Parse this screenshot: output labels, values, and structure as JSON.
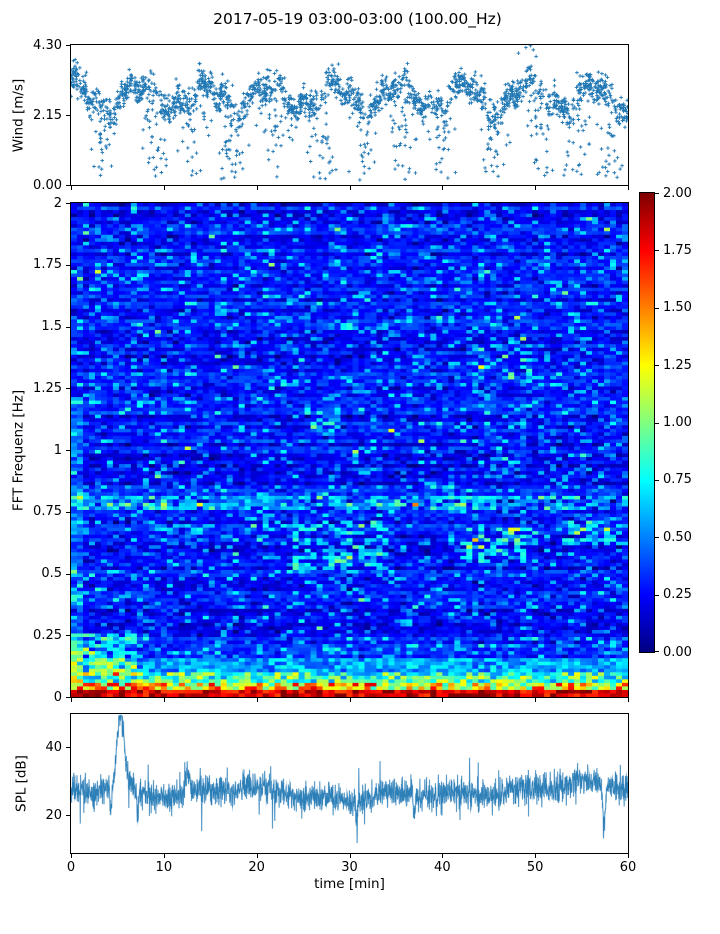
{
  "figure": {
    "title": "2017-05-19 03:00-03:00 (100.00_Hz)",
    "background": "#ffffff",
    "accent_color": "#1f77b4",
    "xtick_values": [
      0,
      10,
      20,
      30,
      40,
      50,
      60
    ]
  },
  "chart_data": [
    {
      "type": "scatter",
      "name": "wind-speed",
      "ylabel": "Wind [m/s]",
      "marker": "+",
      "color": "#1f77b4",
      "xlim": [
        0,
        60
      ],
      "ylim": [
        0.0,
        4.3
      ],
      "yticks": [
        {
          "label": "4.30",
          "value": 4.3
        },
        {
          "label": "2.15",
          "value": 2.15
        },
        {
          "label": "0.00",
          "value": 0.0
        }
      ],
      "summary": "Dense band of wind speed ~2.2-3.4 m/s oscillating around ~2.7 m/s, with repeated lull streaks dropping to ~0.1 m/s near minutes 3,9,13,17,22,27,31,36,40,45,50,55,58; maximum ~4.3 m/s near minute 49.",
      "render_params": {
        "seed": 20170519,
        "n_points": 2300,
        "band_mean": 2.72,
        "band_osc": [
          [
            0.9,
            1.2,
            0.38
          ],
          [
            2.3,
            0.4,
            0.18
          ],
          [
            5.1,
            0.0,
            0.1
          ]
        ],
        "band_noise_sd": 0.22,
        "lull_centers": [
          3.3,
          8.8,
          13.2,
          17.3,
          22.0,
          27.2,
          31.5,
          35.8,
          40.2,
          45.3,
          50.3,
          54.6,
          58.3
        ],
        "lull_sigma": 1.05,
        "lull_prob": 0.62,
        "lull_floor": 0.12,
        "high_outliers": {
          "t": [
            48.2,
            49.0,
            49.5,
            49.8,
            50.1
          ],
          "v": [
            4.05,
            4.22,
            4.28,
            4.15,
            3.95
          ]
        }
      }
    },
    {
      "type": "heatmap",
      "name": "fft-spectrogram",
      "ylabel": "FFT Frequenz [Hz]",
      "xlim": [
        0,
        60
      ],
      "ylim": [
        0,
        2
      ],
      "colormap": "jet",
      "clim": [
        0,
        2
      ],
      "yticks": [
        {
          "label": "2",
          "value": 2
        },
        {
          "label": "1.75",
          "value": 1.75
        },
        {
          "label": "1.5",
          "value": 1.5
        },
        {
          "label": "1.25",
          "value": 1.25
        },
        {
          "label": "1",
          "value": 1
        },
        {
          "label": "0.75",
          "value": 0.75
        },
        {
          "label": "0.5",
          "value": 0.5
        },
        {
          "label": "0.25",
          "value": 0.25
        },
        {
          "label": "0",
          "value": 0
        }
      ],
      "colorbar_ticks": [
        {
          "label": "2.00",
          "value": 2.0
        },
        {
          "label": "1.75",
          "value": 1.75
        },
        {
          "label": "1.50",
          "value": 1.5
        },
        {
          "label": "1.25",
          "value": 1.25
        },
        {
          "label": "1.00",
          "value": 1.0
        },
        {
          "label": "0.75",
          "value": 0.75
        },
        {
          "label": "0.50",
          "value": 0.5
        },
        {
          "label": "0.25",
          "value": 0.25
        },
        {
          "label": "0.00",
          "value": 0.0
        }
      ],
      "summary": "Spectrogram 0-2 Hz over 60 min, jet colormap scaled 0-2. Background mostly blue (~0.2-0.4) with lighter blue/cyan horizontal dashes; strong energy below ~0.1 Hz (yellow/orange/dark-red, ~1-2), persistent elevated line near 0.78 Hz, cyan patches near 0.55-0.7 Hz around minutes 25-34 and 42-50, and near 1.1-1.45 Hz around minutes 26-29 and 43-50.",
      "render_params": {
        "seed": 97531,
        "nx": 93,
        "ny": 140,
        "base": 0.17,
        "base_spread": 0.2,
        "row_jitter": 0.1,
        "dash_prob": 0.17,
        "dash_boost": [
          0.12,
          0.3
        ],
        "dark_prob": 0.12,
        "dark_drop": 0.12,
        "bright_prob": 0.02,
        "bright_boost": 0.4,
        "freq_bands": [
          {
            "fmax": 0.03,
            "base": 1.55,
            "spread": 0.45
          },
          {
            "fmax": 0.06,
            "base": 0.75,
            "spread": 1.0
          },
          {
            "fmax": 0.1,
            "base": 0.45,
            "spread": 0.75
          },
          {
            "fmax": 0.16,
            "base": 0.3,
            "spread": 0.45
          }
        ],
        "low_freq_tilt": {
          "fmax": 0.35,
          "gain": 0.2
        },
        "line_band": {
          "f0": 0.755,
          "f1": 0.81,
          "boost": 0.2,
          "spread": 0.22,
          "prob": 0.75
        },
        "left_edge": {
          "tmax": 1.6,
          "fmax": 1.2,
          "boost": 0.17
        },
        "patches": [
          [
            24,
            34,
            0.52,
            0.72,
            0.35,
            0.35
          ],
          [
            42,
            50,
            0.55,
            0.68,
            0.4,
            0.4
          ],
          [
            43,
            50,
            1.28,
            1.45,
            0.3,
            0.3
          ],
          [
            25,
            29,
            1.08,
            1.17,
            0.35,
            0.4
          ],
          [
            45,
            49,
            0.88,
            1.0,
            0.25,
            0.35
          ],
          [
            8,
            14,
            0.6,
            0.7,
            0.25,
            0.3
          ],
          [
            53,
            60,
            0.62,
            0.72,
            0.3,
            0.35
          ],
          [
            0,
            7,
            0.08,
            0.26,
            0.35,
            0.6
          ]
        ]
      }
    },
    {
      "type": "line",
      "name": "spl",
      "ylabel": "SPL [dB]",
      "xlabel": "time [min]",
      "color": "#1f77b4",
      "xlim": [
        0,
        60
      ],
      "ylim": [
        9,
        49.7
      ],
      "yticks": [
        {
          "label": "40",
          "value": 40
        },
        {
          "label": "20",
          "value": 20
        }
      ],
      "xticks": [
        {
          "label": "0",
          "value": 0
        },
        {
          "label": "10",
          "value": 10
        },
        {
          "label": "20",
          "value": 20
        },
        {
          "label": "30",
          "value": 30
        },
        {
          "label": "40",
          "value": 40
        },
        {
          "label": "50",
          "value": 50
        },
        {
          "label": "60",
          "value": 60
        }
      ],
      "summary": "Noisy SPL trace fluctuating ~22-33 dB around mean ~27 dB; prominent peak ~48 dB at ~5.4 min with dips to ~13 dB nearby; secondary bump ~35 dB near 12.6 min; slightly elevated, wavier level after ~42 min; deep downward spike to ~12 dB near 57.5 min.",
      "render_params": {
        "seed": 424242,
        "n_points": 2600,
        "mean": 26.3,
        "slow_osc": [
          [
            0.35,
            1.0,
            1.1
          ],
          [
            0.13,
            0.0,
            0.9
          ],
          [
            0.9,
            2.0,
            0.9
          ]
        ],
        "noise_sd": 2.1,
        "spike_prob": 0.015,
        "spike_amp": [
          4,
          9
        ],
        "bumps": [
          [
            5.35,
            0.5,
            19
          ],
          [
            5.35,
            1.4,
            3.5
          ],
          [
            12.6,
            0.35,
            5
          ],
          [
            4.3,
            0.15,
            -9
          ],
          [
            7.2,
            0.12,
            -8
          ],
          [
            30.8,
            0.1,
            -6
          ],
          [
            37.0,
            0.15,
            -7
          ],
          [
            57.4,
            0.2,
            -11
          ]
        ],
        "late_boost": {
          "t0": 42,
          "gain": 1.5
        }
      }
    }
  ]
}
